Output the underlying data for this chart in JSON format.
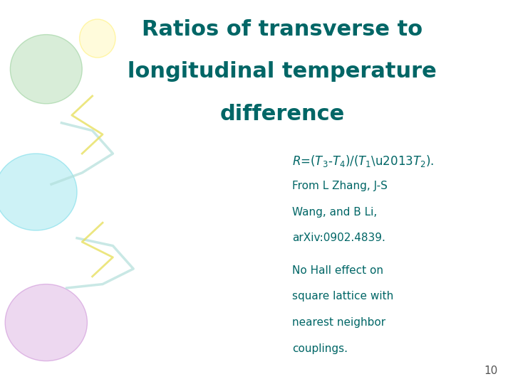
{
  "title_line1": "Ratios of transverse to",
  "title_line2": "longitudinal temperature",
  "title_line3": "difference",
  "title_color": "#006666",
  "reference_line1": "From L Zhang, J-S",
  "reference_line2": "Wang, and B Li,",
  "reference_line3": "arXiv:0902.4839.",
  "note_line1": "No Hall effect on",
  "note_line2": "square lattice with",
  "note_line3": "nearest neighbor",
  "note_line4": "couplings.",
  "slide_number": "10",
  "text_color": "#006666",
  "bg_color": "#ffffff"
}
